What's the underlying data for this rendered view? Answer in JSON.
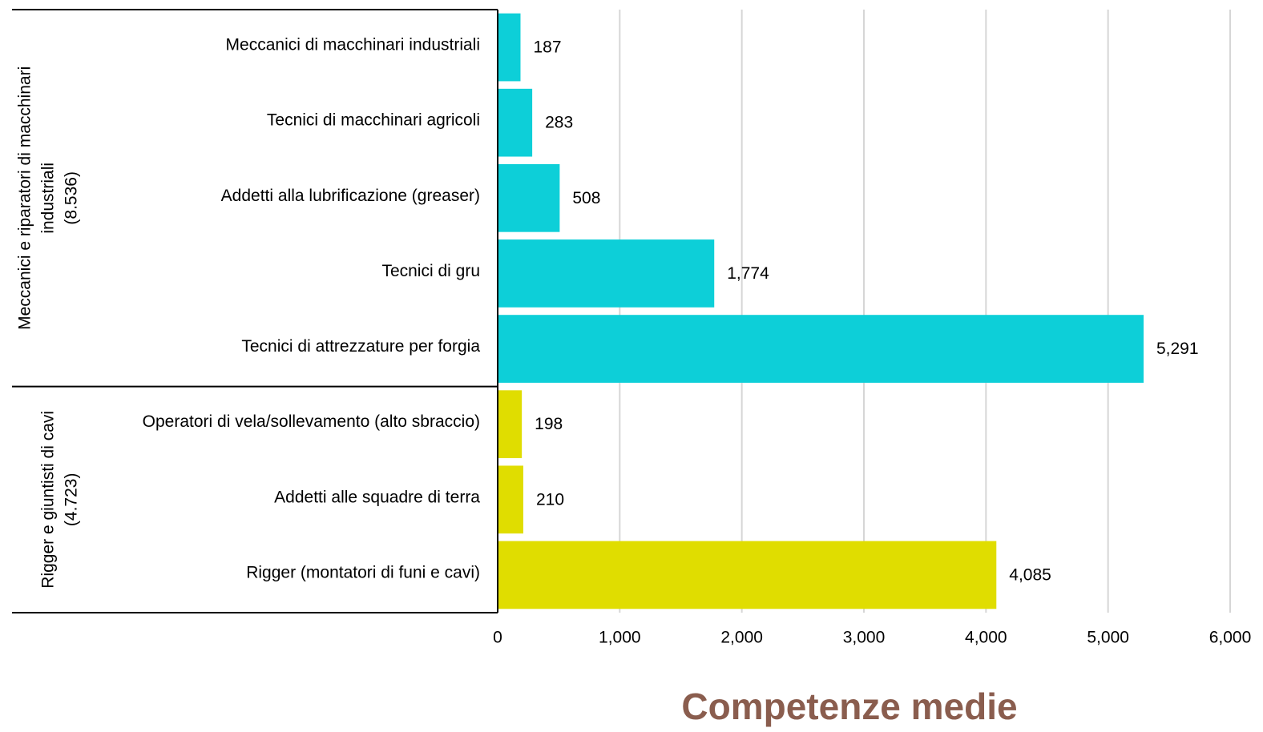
{
  "chart_data": {
    "type": "bar",
    "orientation": "horizontal",
    "xlabel": "Competenze medie",
    "xlim": [
      0,
      6000
    ],
    "xticks": [
      0,
      {
        "value": 1000,
        "label": "1,000"
      },
      {
        "value": 2000,
        "label": "2,000"
      },
      {
        "value": 3000,
        "label": "3,000"
      },
      {
        "value": 4000,
        "label": "4,000"
      },
      {
        "value": 5000,
        "label": "5,000"
      },
      {
        "value": 6000,
        "label": "6,000"
      }
    ],
    "grid": true,
    "groups": [
      {
        "label": [
          "Meccanici e riparatori di macchinari",
          "industriali",
          "(8.536)"
        ],
        "color": "#0dcfd8",
        "categories": [
          "Meccanici di macchinari industriali",
          "Tecnici di macchinari agricoli",
          "Addetti alla lubrificazione (greaser)",
          "Tecnici di gru",
          "Tecnici di attrezzature per forgia"
        ],
        "values": [
          187,
          283,
          508,
          1774,
          5291
        ],
        "value_labels": [
          "187",
          "283",
          "508",
          "1,774",
          "5,291"
        ]
      },
      {
        "label": [
          "Rigger e giuntisti di cavi",
          "(4.723)"
        ],
        "color": "#e0dd00",
        "categories": [
          "Operatori di vela/sollevamento (alto sbraccio)",
          "Addetti alle squadre di terra",
          "Rigger (montatori di funi e cavi)"
        ],
        "values": [
          198,
          210,
          4085
        ],
        "value_labels": [
          "198",
          "210",
          "4,085"
        ]
      }
    ]
  }
}
